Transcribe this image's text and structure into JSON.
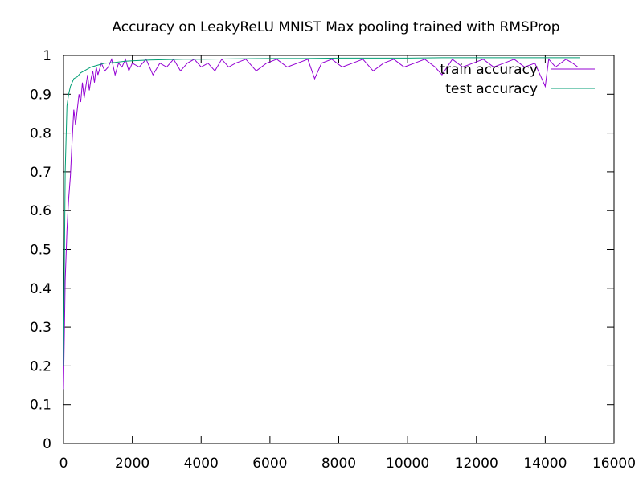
{
  "chart_data": {
    "type": "line",
    "title": "Accuracy on LeakyReLU MNIST Max pooling trained with RMSProp",
    "xlabel": "",
    "ylabel": "",
    "xlim": [
      0,
      16000
    ],
    "ylim": [
      0,
      1
    ],
    "x_ticks": [
      "0",
      "2000",
      "4000",
      "6000",
      "8000",
      "10000",
      "12000",
      "14000",
      "16000"
    ],
    "y_ticks": [
      "0",
      "0.1",
      "0.2",
      "0.3",
      "0.4",
      "0.5",
      "0.6",
      "0.7",
      "0.8",
      "0.9",
      "1"
    ],
    "grid": false,
    "legend_position": "top-right",
    "series": [
      {
        "name": "train accuracy",
        "color": "#9400d3",
        "x": [
          0,
          50,
          100,
          150,
          200,
          250,
          300,
          350,
          400,
          450,
          500,
          550,
          600,
          650,
          700,
          750,
          800,
          850,
          900,
          950,
          1000,
          1100,
          1200,
          1300,
          1400,
          1500,
          1600,
          1700,
          1800,
          1900,
          2000,
          2200,
          2400,
          2600,
          2800,
          3000,
          3200,
          3400,
          3600,
          3800,
          4000,
          4200,
          4400,
          4600,
          4800,
          5000,
          5300,
          5600,
          5900,
          6200,
          6500,
          6800,
          7100,
          7300,
          7500,
          7800,
          8100,
          8400,
          8700,
          9000,
          9300,
          9600,
          9900,
          10200,
          10500,
          10800,
          11000,
          11300,
          11600,
          11900,
          12200,
          12500,
          12800,
          13100,
          13400,
          13700,
          14000,
          14100,
          14300,
          14600,
          14800,
          14950
        ],
        "y": [
          0.14,
          0.42,
          0.55,
          0.63,
          0.69,
          0.78,
          0.86,
          0.82,
          0.86,
          0.9,
          0.88,
          0.93,
          0.89,
          0.92,
          0.95,
          0.91,
          0.94,
          0.96,
          0.93,
          0.97,
          0.95,
          0.98,
          0.96,
          0.97,
          0.99,
          0.95,
          0.98,
          0.97,
          0.99,
          0.96,
          0.98,
          0.97,
          0.99,
          0.95,
          0.98,
          0.97,
          0.99,
          0.96,
          0.98,
          0.99,
          0.97,
          0.98,
          0.96,
          0.99,
          0.97,
          0.98,
          0.99,
          0.96,
          0.98,
          0.99,
          0.97,
          0.98,
          0.99,
          0.94,
          0.98,
          0.99,
          0.97,
          0.98,
          0.99,
          0.96,
          0.98,
          0.99,
          0.97,
          0.98,
          0.99,
          0.97,
          0.95,
          0.99,
          0.97,
          0.98,
          0.99,
          0.97,
          0.98,
          0.99,
          0.97,
          0.98,
          0.92,
          0.99,
          0.97,
          0.99,
          0.98,
          0.97
        ]
      },
      {
        "name": "test accuracy",
        "color": "#009e73",
        "x": [
          0,
          50,
          100,
          150,
          200,
          300,
          400,
          500,
          600,
          800,
          1000,
          1200,
          1500,
          1800,
          2000,
          2500,
          3000,
          3500,
          4000,
          5000,
          6000,
          7000,
          8000,
          9000,
          10000,
          11000,
          12000,
          13000,
          14000,
          15000
        ],
        "y": [
          0.2,
          0.7,
          0.87,
          0.9,
          0.92,
          0.94,
          0.945,
          0.955,
          0.96,
          0.97,
          0.975,
          0.98,
          0.982,
          0.985,
          0.986,
          0.988,
          0.989,
          0.99,
          0.99,
          0.991,
          0.992,
          0.992,
          0.993,
          0.993,
          0.993,
          0.994,
          0.994,
          0.994,
          0.994,
          0.994
        ]
      }
    ]
  }
}
